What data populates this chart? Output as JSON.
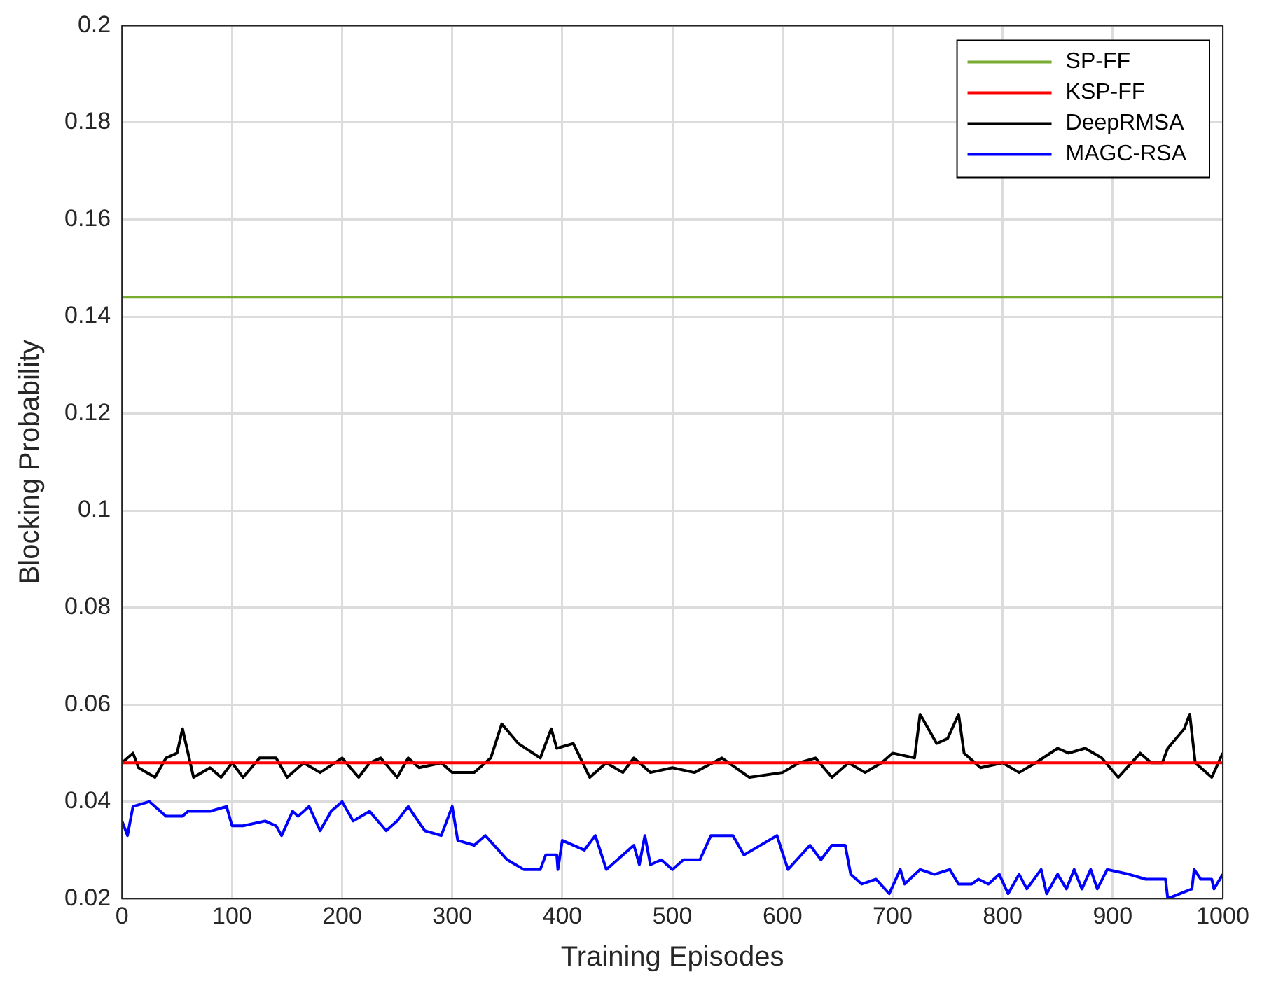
{
  "chart_data": {
    "type": "line",
    "xlabel": "Training Episodes",
    "ylabel": "Blocking Probability",
    "xlim": [
      0,
      1000
    ],
    "xticks": [
      0,
      100,
      200,
      300,
      400,
      500,
      600,
      700,
      800,
      900,
      1000
    ],
    "ylim": [
      0.02,
      0.2
    ],
    "yticks": [
      0.02,
      0.04,
      0.06,
      0.08,
      0.1,
      0.12,
      0.14,
      0.16,
      0.18,
      0.2
    ],
    "grid": true,
    "legend": "top right",
    "marker": "none",
    "line_style": "solid",
    "series": [
      {
        "name": "SP-FF",
        "color": "#77ac30",
        "x": [
          0,
          1000
        ],
        "values": [
          0.144,
          0.144
        ]
      },
      {
        "name": "KSP-FF",
        "color": "#ff0000",
        "x": [
          0,
          1000
        ],
        "values": [
          0.048,
          0.048
        ]
      },
      {
        "name": "DeepRMSA",
        "color": "#000000",
        "x": [
          0,
          5,
          10,
          15,
          30,
          40,
          50,
          55,
          65,
          80,
          90,
          100,
          110,
          125,
          140,
          150,
          165,
          180,
          200,
          215,
          225,
          235,
          250,
          260,
          270,
          290,
          300,
          320,
          335,
          345,
          360,
          380,
          390,
          395,
          410,
          425,
          440,
          455,
          465,
          480,
          500,
          520,
          545,
          570,
          600,
          615,
          630,
          645,
          660,
          675,
          690,
          700,
          720,
          725,
          740,
          750,
          760,
          765,
          780,
          800,
          815,
          830,
          850,
          860,
          875,
          890,
          905,
          925,
          935,
          945,
          950,
          965,
          970,
          975,
          990,
          1000
        ],
        "values": [
          0.048,
          0.049,
          0.05,
          0.047,
          0.045,
          0.049,
          0.05,
          0.055,
          0.045,
          0.047,
          0.045,
          0.048,
          0.045,
          0.049,
          0.049,
          0.045,
          0.048,
          0.046,
          0.049,
          0.045,
          0.048,
          0.049,
          0.045,
          0.049,
          0.047,
          0.048,
          0.046,
          0.046,
          0.049,
          0.056,
          0.052,
          0.049,
          0.055,
          0.051,
          0.052,
          0.045,
          0.048,
          0.046,
          0.049,
          0.046,
          0.047,
          0.046,
          0.049,
          0.045,
          0.046,
          0.048,
          0.049,
          0.045,
          0.048,
          0.046,
          0.048,
          0.05,
          0.049,
          0.058,
          0.052,
          0.053,
          0.058,
          0.05,
          0.047,
          0.048,
          0.046,
          0.048,
          0.051,
          0.05,
          0.051,
          0.049,
          0.045,
          0.05,
          0.048,
          0.048,
          0.051,
          0.055,
          0.058,
          0.048,
          0.045,
          0.05
        ]
      },
      {
        "name": "MAGC-RSA",
        "color": "#0000ff",
        "x": [
          0,
          5,
          10,
          25,
          40,
          55,
          60,
          80,
          95,
          100,
          110,
          130,
          140,
          145,
          155,
          160,
          170,
          180,
          190,
          200,
          210,
          225,
          240,
          250,
          260,
          275,
          290,
          300,
          305,
          320,
          330,
          350,
          365,
          380,
          385,
          395,
          396,
          400,
          420,
          430,
          440,
          465,
          470,
          475,
          480,
          490,
          500,
          510,
          525,
          535,
          555,
          565,
          595,
          605,
          625,
          635,
          645,
          657,
          662,
          672,
          685,
          697,
          707,
          711,
          725,
          738,
          752,
          760,
          772,
          778,
          787,
          797,
          805,
          815,
          822,
          835,
          840,
          850,
          858,
          865,
          872,
          880,
          886,
          895,
          915,
          930,
          948,
          950,
          972,
          974,
          980,
          990,
          992,
          1000
        ],
        "values": [
          0.036,
          0.033,
          0.039,
          0.04,
          0.037,
          0.037,
          0.038,
          0.038,
          0.039,
          0.035,
          0.035,
          0.036,
          0.035,
          0.033,
          0.038,
          0.037,
          0.039,
          0.034,
          0.038,
          0.04,
          0.036,
          0.038,
          0.034,
          0.036,
          0.039,
          0.034,
          0.033,
          0.039,
          0.032,
          0.031,
          0.033,
          0.028,
          0.026,
          0.026,
          0.029,
          0.029,
          0.026,
          0.032,
          0.03,
          0.033,
          0.026,
          0.031,
          0.027,
          0.033,
          0.027,
          0.028,
          0.026,
          0.028,
          0.028,
          0.033,
          0.033,
          0.029,
          0.033,
          0.026,
          0.031,
          0.028,
          0.031,
          0.031,
          0.025,
          0.023,
          0.024,
          0.021,
          0.026,
          0.023,
          0.026,
          0.025,
          0.026,
          0.023,
          0.023,
          0.024,
          0.023,
          0.025,
          0.021,
          0.025,
          0.022,
          0.026,
          0.021,
          0.025,
          0.022,
          0.026,
          0.022,
          0.026,
          0.022,
          0.026,
          0.025,
          0.024,
          0.024,
          0.02,
          0.022,
          0.026,
          0.024,
          0.024,
          0.022,
          0.025
        ]
      }
    ]
  }
}
